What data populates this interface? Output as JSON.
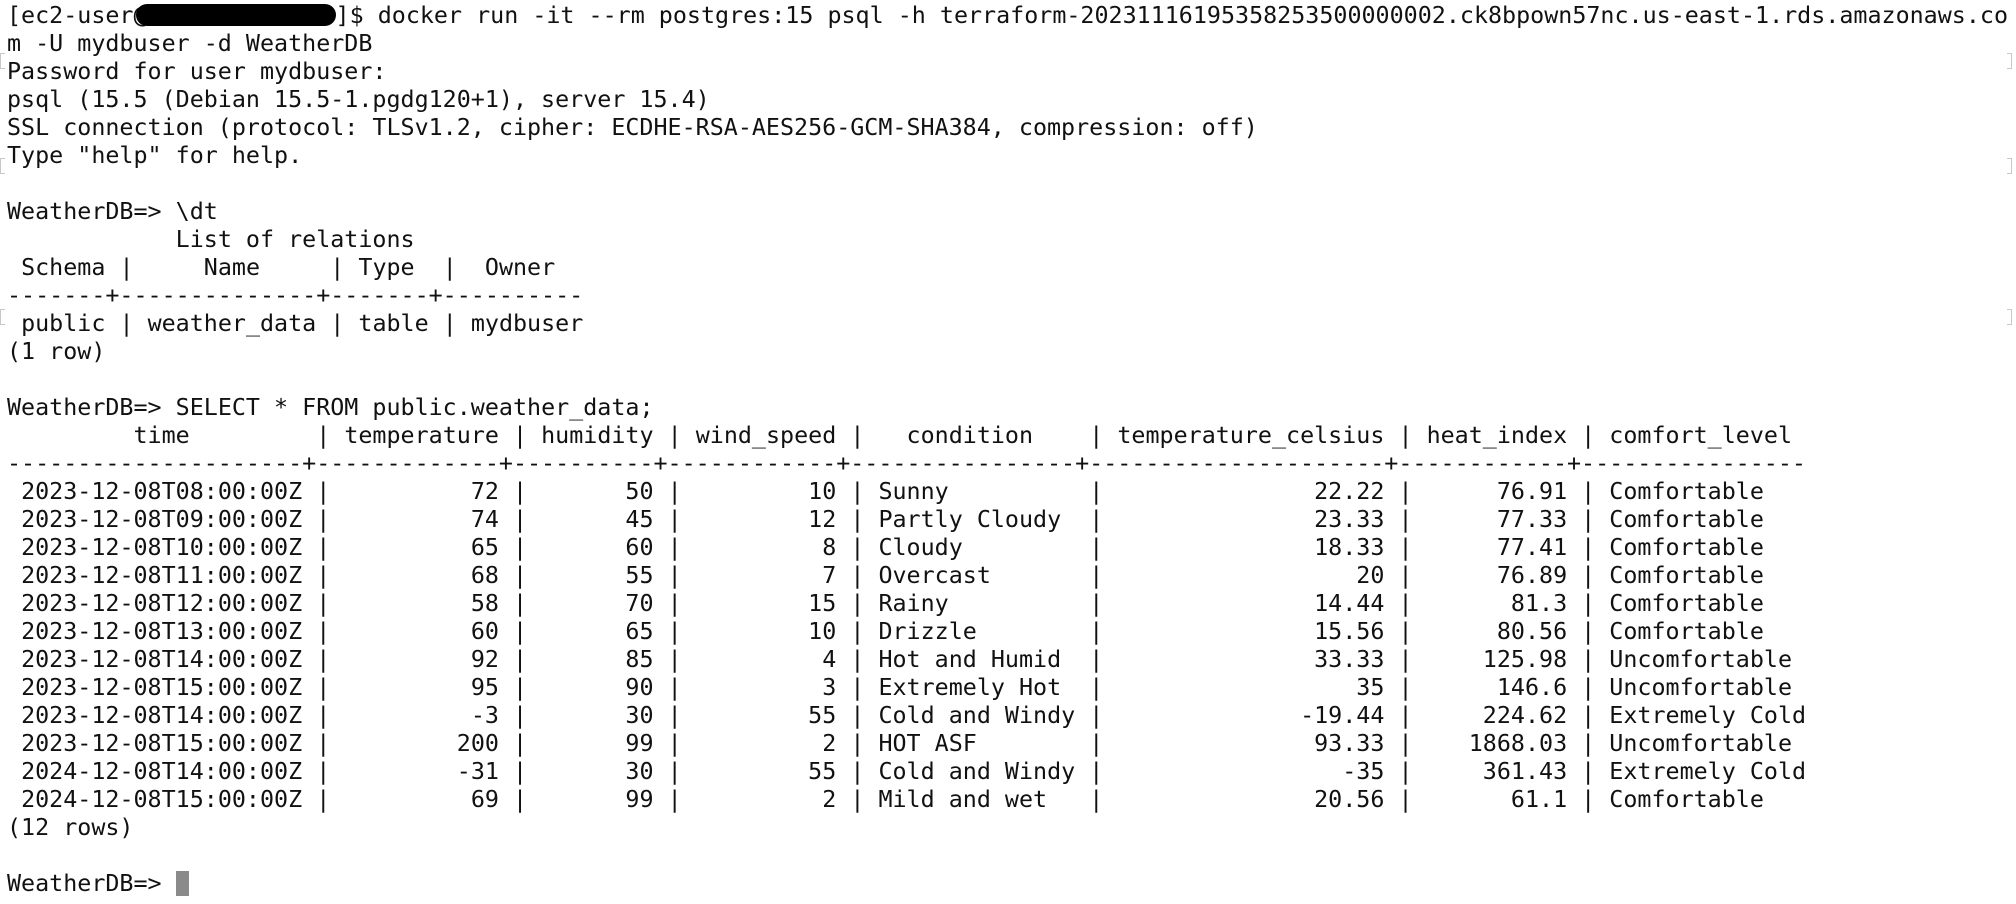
{
  "terminal": {
    "prompt_user": "[ec2-user@",
    "prompt_end": "]$ ",
    "docker_command": "docker run -it --rm postgres:15 psql -h terraform-20231116195358253500000002.ck8bpown57nc.us-east-1.rds.amazonaws.co",
    "docker_command_wrap": "m -U mydbuser -d WeatherDB",
    "password_prompt": "Password for user mydbuser:",
    "psql_version": "psql (15.5 (Debian 15.5-1.pgdg120+1), server 15.4)",
    "ssl_info": "SSL connection (protocol: TLSv1.2, cipher: ECDHE-RSA-AES256-GCM-SHA384, compression: off)",
    "help_hint": "Type \"help\" for help.",
    "db_prompt": "WeatherDB=> ",
    "dt_command": "\\dt",
    "relations": {
      "title": "List of relations",
      "columns": [
        "Schema",
        "Name",
        "Type",
        "Owner"
      ],
      "rows": [
        [
          "public",
          "weather_data",
          "table",
          "mydbuser"
        ]
      ],
      "footer": "(1 row)"
    },
    "select_command": "SELECT * FROM public.weather_data;",
    "weather": {
      "columns": [
        "time",
        "temperature",
        "humidity",
        "wind_speed",
        "condition",
        "temperature_celsius",
        "heat_index",
        "comfort_level"
      ],
      "rows": [
        [
          "2023-12-08T08:00:00Z",
          "72",
          "50",
          "10",
          "Sunny",
          "22.22",
          "76.91",
          "Comfortable"
        ],
        [
          "2023-12-08T09:00:00Z",
          "74",
          "45",
          "12",
          "Partly Cloudy",
          "23.33",
          "77.33",
          "Comfortable"
        ],
        [
          "2023-12-08T10:00:00Z",
          "65",
          "60",
          "8",
          "Cloudy",
          "18.33",
          "77.41",
          "Comfortable"
        ],
        [
          "2023-12-08T11:00:00Z",
          "68",
          "55",
          "7",
          "Overcast",
          "20",
          "76.89",
          "Comfortable"
        ],
        [
          "2023-12-08T12:00:00Z",
          "58",
          "70",
          "15",
          "Rainy",
          "14.44",
          "81.3",
          "Comfortable"
        ],
        [
          "2023-12-08T13:00:00Z",
          "60",
          "65",
          "10",
          "Drizzle",
          "15.56",
          "80.56",
          "Comfortable"
        ],
        [
          "2023-12-08T14:00:00Z",
          "92",
          "85",
          "4",
          "Hot and Humid",
          "33.33",
          "125.98",
          "Uncomfortable"
        ],
        [
          "2023-12-08T15:00:00Z",
          "95",
          "90",
          "3",
          "Extremely Hot",
          "35",
          "146.6",
          "Uncomfortable"
        ],
        [
          "2023-12-08T14:00:00Z",
          "-3",
          "30",
          "55",
          "Cold and Windy",
          "-19.44",
          "224.62",
          "Extremely Cold"
        ],
        [
          "2023-12-08T15:00:00Z",
          "200",
          "99",
          "2",
          "HOT ASF",
          "93.33",
          "1868.03",
          "Uncomfortable"
        ],
        [
          "2024-12-08T14:00:00Z",
          "-31",
          "30",
          "55",
          "Cold and Windy",
          "-35",
          "361.43",
          "Extremely Cold"
        ],
        [
          "2024-12-08T15:00:00Z",
          "69",
          "99",
          "2",
          "Mild and wet",
          "20.56",
          "61.1",
          "Comfortable"
        ]
      ],
      "footer": "(12 rows)"
    }
  },
  "colors": {
    "background": "#ffffff",
    "text": "#111111",
    "cursor": "#8a8a8a",
    "redaction": "#000000"
  }
}
